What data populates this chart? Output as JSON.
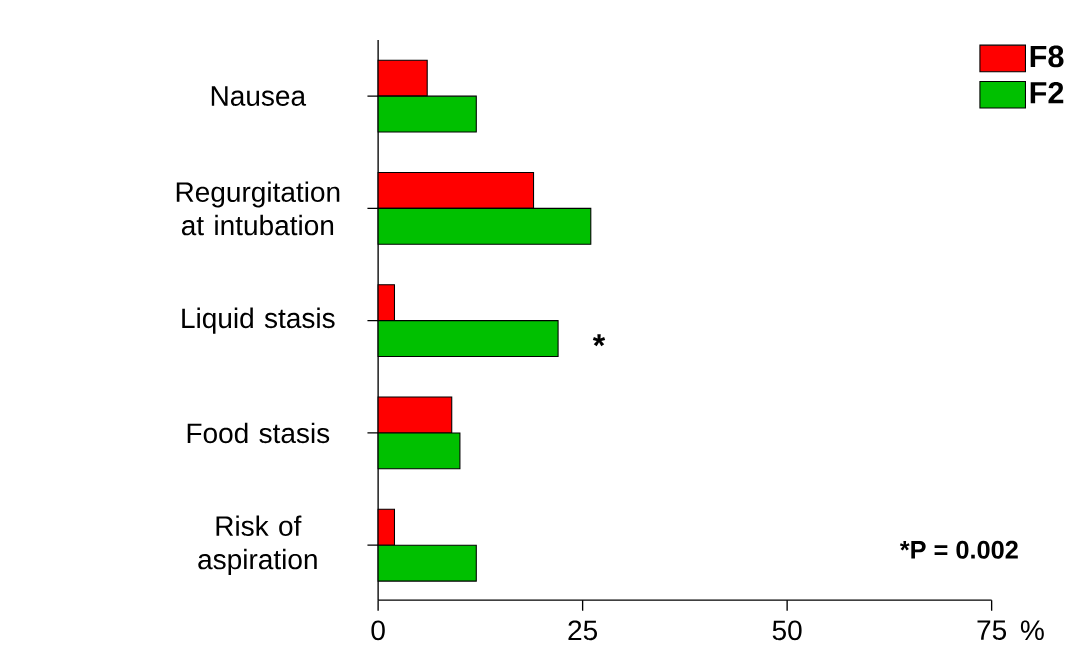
{
  "chart_data": {
    "type": "bar",
    "orientation": "horizontal",
    "categories": [
      "Nausea",
      "Regurgitation at intubation",
      "Liquid stasis",
      "Food stasis",
      "Risk of aspiration"
    ],
    "series": [
      {
        "name": "F8",
        "color": "#ff0000",
        "values": [
          6,
          19,
          2,
          9,
          2
        ]
      },
      {
        "name": "F2",
        "color": "#00c000",
        "values": [
          12,
          26,
          22,
          10,
          12
        ]
      }
    ],
    "xlabel": "%",
    "xlim": [
      0,
      75
    ],
    "xticks": [
      0,
      25,
      50,
      75
    ],
    "legend": "top right",
    "grid": false,
    "annotations": [
      "*",
      "*P = 0.002"
    ]
  }
}
